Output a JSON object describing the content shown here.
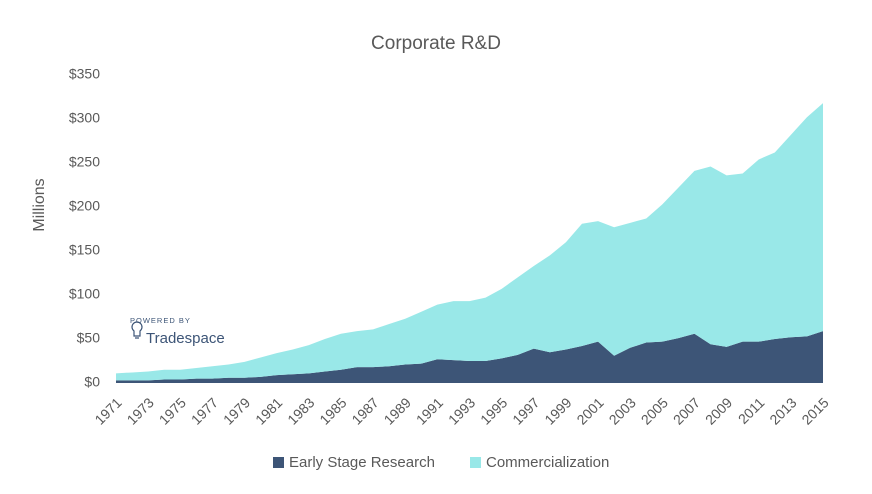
{
  "chart_data": {
    "type": "stacked_area",
    "title": "Corporate R&D",
    "ylabel": "Millions",
    "x": [
      1971,
      1972,
      1973,
      1974,
      1975,
      1976,
      1977,
      1978,
      1979,
      1980,
      1981,
      1982,
      1983,
      1984,
      1985,
      1986,
      1987,
      1988,
      1989,
      1990,
      1991,
      1992,
      1993,
      1994,
      1995,
      1996,
      1997,
      1998,
      1999,
      2000,
      2001,
      2002,
      2003,
      2004,
      2005,
      2006,
      2007,
      2008,
      2009,
      2010,
      2011,
      2012,
      2013,
      2014,
      2015
    ],
    "series": [
      {
        "name": "Early Stage Research",
        "color": "#3d5577",
        "values": [
          3,
          3,
          3,
          4,
          4,
          5,
          5,
          6,
          6,
          7,
          9,
          10,
          11,
          13,
          15,
          18,
          18,
          19,
          21,
          22,
          27,
          26,
          25,
          25,
          28,
          32,
          39,
          35,
          38,
          42,
          47,
          31,
          40,
          46,
          47,
          51,
          56,
          44,
          41,
          47,
          47,
          50,
          52,
          53,
          59
        ]
      },
      {
        "name": "Commercialization",
        "color": "#99e8e8",
        "values": [
          8,
          9,
          10,
          11,
          11,
          12,
          14,
          15,
          18,
          22,
          25,
          28,
          32,
          37,
          41,
          41,
          43,
          48,
          52,
          59,
          62,
          67,
          68,
          72,
          79,
          88,
          94,
          110,
          122,
          139,
          137,
          146,
          142,
          141,
          156,
          171,
          185,
          202,
          195,
          191,
          207,
          212,
          230,
          249,
          259
        ]
      }
    ],
    "xlim": [
      1971,
      2015
    ],
    "xticks": [
      1971,
      1973,
      1975,
      1977,
      1979,
      1981,
      1983,
      1985,
      1987,
      1989,
      1991,
      1993,
      1995,
      1997,
      1999,
      2001,
      2003,
      2005,
      2007,
      2009,
      2011,
      2013,
      2015
    ],
    "ylim": [
      0,
      350
    ],
    "yticks": [
      {
        "value": 0,
        "label": "$0"
      },
      {
        "value": 50,
        "label": "$50"
      },
      {
        "value": 100,
        "label": "$100"
      },
      {
        "value": 150,
        "label": "$150"
      },
      {
        "value": 200,
        "label": "$200"
      },
      {
        "value": 250,
        "label": "$250"
      },
      {
        "value": 300,
        "label": "$300"
      },
      {
        "value": 350,
        "label": "$350"
      }
    ],
    "grid": false,
    "legend": "bottom",
    "watermark": {
      "caption": "POWERED BY",
      "brand": "Tradespace"
    }
  }
}
